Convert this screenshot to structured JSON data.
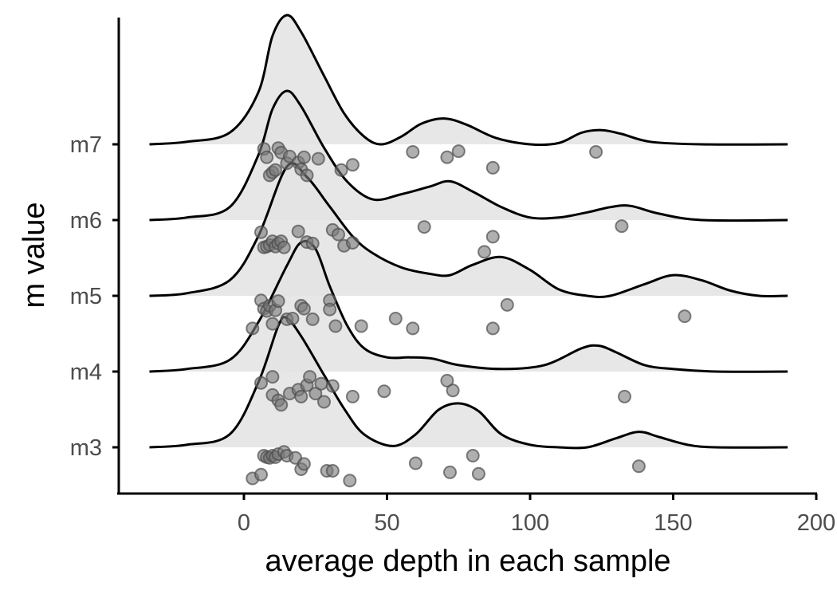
{
  "chart_data": {
    "type": "ridgeline",
    "title": "",
    "xlabel": "average depth in each sample",
    "ylabel": "m value",
    "xlim": [
      -45,
      200
    ],
    "x_ticks": [
      0,
      50,
      100,
      150,
      200
    ],
    "grid": false,
    "categories": [
      "m3",
      "m4",
      "m5",
      "m6",
      "m7"
    ],
    "series": [
      {
        "name": "m3",
        "density": [
          [
            -33,
            0
          ],
          [
            -20,
            0.02
          ],
          [
            -5,
            0.1
          ],
          [
            5,
            0.5
          ],
          [
            12,
            0.94
          ],
          [
            15,
            1.0
          ],
          [
            20,
            0.86
          ],
          [
            28,
            0.56
          ],
          [
            35,
            0.3
          ],
          [
            42,
            0.1
          ],
          [
            52,
            0.01
          ],
          [
            60,
            0.1
          ],
          [
            68,
            0.29
          ],
          [
            75,
            0.34
          ],
          [
            82,
            0.28
          ],
          [
            90,
            0.1
          ],
          [
            100,
            0.02
          ],
          [
            110,
            0.0
          ],
          [
            120,
            0.0
          ],
          [
            130,
            0.07
          ],
          [
            138,
            0.12
          ],
          [
            145,
            0.08
          ],
          [
            155,
            0.02
          ],
          [
            165,
            0.0
          ],
          [
            190,
            0.0
          ]
        ],
        "points": [
          [
            3,
            -0.41
          ],
          [
            6,
            -0.36
          ],
          [
            7,
            -0.11
          ],
          [
            8,
            -0.13
          ],
          [
            9,
            -0.14
          ],
          [
            10,
            -0.11
          ],
          [
            11,
            -0.13
          ],
          [
            12,
            -0.09
          ],
          [
            14,
            -0.06
          ],
          [
            15,
            -0.11
          ],
          [
            18,
            -0.14
          ],
          [
            20,
            -0.29
          ],
          [
            21,
            -0.22
          ],
          [
            29,
            -0.31
          ],
          [
            31,
            -0.31
          ],
          [
            37,
            -0.44
          ],
          [
            60,
            -0.21
          ],
          [
            72,
            -0.33
          ],
          [
            80,
            -0.11
          ],
          [
            82,
            -0.35
          ],
          [
            138,
            -0.25
          ]
        ]
      },
      {
        "name": "m4",
        "density": [
          [
            -33,
            0
          ],
          [
            -20,
            0.02
          ],
          [
            -5,
            0.09
          ],
          [
            5,
            0.38
          ],
          [
            15,
            0.82
          ],
          [
            20,
            1.0
          ],
          [
            25,
            0.95
          ],
          [
            30,
            0.66
          ],
          [
            36,
            0.36
          ],
          [
            42,
            0.18
          ],
          [
            50,
            0.11
          ],
          [
            58,
            0.11
          ],
          [
            66,
            0.1
          ],
          [
            75,
            0.05
          ],
          [
            90,
            0.02
          ],
          [
            105,
            0.05
          ],
          [
            118,
            0.18
          ],
          [
            124,
            0.2
          ],
          [
            130,
            0.15
          ],
          [
            140,
            0.05
          ],
          [
            150,
            0.02
          ],
          [
            165,
            0.0
          ],
          [
            190,
            0.0
          ]
        ],
        "points": [
          [
            6,
            -0.15
          ],
          [
            10,
            -0.07
          ],
          [
            10,
            -0.31
          ],
          [
            12,
            -0.38
          ],
          [
            13,
            -0.44
          ],
          [
            16,
            -0.29
          ],
          [
            19,
            -0.24
          ],
          [
            20,
            -0.33
          ],
          [
            22,
            -0.18
          ],
          [
            23,
            -0.07
          ],
          [
            25,
            -0.29
          ],
          [
            27,
            -0.16
          ],
          [
            28,
            -0.4
          ],
          [
            31,
            -0.19
          ],
          [
            38,
            -0.33
          ],
          [
            49,
            -0.26
          ],
          [
            71,
            -0.12
          ],
          [
            73,
            -0.25
          ],
          [
            133,
            -0.33
          ]
        ]
      },
      {
        "name": "m5",
        "density": [
          [
            -33,
            0
          ],
          [
            -20,
            0.02
          ],
          [
            -5,
            0.12
          ],
          [
            5,
            0.46
          ],
          [
            15,
            1.0
          ],
          [
            22,
            0.92
          ],
          [
            30,
            0.69
          ],
          [
            38,
            0.46
          ],
          [
            45,
            0.33
          ],
          [
            55,
            0.22
          ],
          [
            65,
            0.17
          ],
          [
            72,
            0.16
          ],
          [
            80,
            0.24
          ],
          [
            90,
            0.3
          ],
          [
            100,
            0.2
          ],
          [
            110,
            0.05
          ],
          [
            120,
            0.0
          ],
          [
            128,
            0.0
          ],
          [
            140,
            0.09
          ],
          [
            150,
            0.16
          ],
          [
            160,
            0.12
          ],
          [
            170,
            0.04
          ],
          [
            180,
            0.0
          ],
          [
            190,
            0.0
          ]
        ],
        "points": [
          [
            3,
            -0.43
          ],
          [
            6,
            -0.06
          ],
          [
            7,
            -0.17
          ],
          [
            8,
            -0.2
          ],
          [
            9,
            -0.13
          ],
          [
            10,
            -0.37
          ],
          [
            11,
            -0.19
          ],
          [
            12,
            -0.07
          ],
          [
            15,
            -0.31
          ],
          [
            17,
            -0.3
          ],
          [
            20,
            -0.13
          ],
          [
            21,
            -0.17
          ],
          [
            24,
            -0.31
          ],
          [
            30,
            -0.06
          ],
          [
            30,
            -0.18
          ],
          [
            32,
            -0.4
          ],
          [
            41,
            -0.4
          ],
          [
            53,
            -0.3
          ],
          [
            59,
            -0.43
          ],
          [
            87,
            -0.43
          ],
          [
            92,
            -0.12
          ],
          [
            154,
            -0.27
          ]
        ]
      },
      {
        "name": "m6",
        "density": [
          [
            -33,
            0
          ],
          [
            -20,
            0.02
          ],
          [
            -5,
            0.1
          ],
          [
            5,
            0.5
          ],
          [
            10,
            0.86
          ],
          [
            15,
            1.0
          ],
          [
            20,
            0.88
          ],
          [
            28,
            0.56
          ],
          [
            36,
            0.3
          ],
          [
            45,
            0.16
          ],
          [
            55,
            0.2
          ],
          [
            65,
            0.26
          ],
          [
            72,
            0.3
          ],
          [
            80,
            0.22
          ],
          [
            90,
            0.1
          ],
          [
            100,
            0.02
          ],
          [
            110,
            0.02
          ],
          [
            120,
            0.06
          ],
          [
            128,
            0.1
          ],
          [
            135,
            0.11
          ],
          [
            145,
            0.05
          ],
          [
            160,
            0.0
          ],
          [
            190,
            0.0
          ]
        ],
        "points": [
          [
            6,
            -0.16
          ],
          [
            7,
            -0.36
          ],
          [
            8,
            -0.35
          ],
          [
            9,
            -0.33
          ],
          [
            10,
            -0.28
          ],
          [
            11,
            -0.35
          ],
          [
            12,
            -0.31
          ],
          [
            13,
            -0.28
          ],
          [
            14,
            -0.36
          ],
          [
            19,
            -0.15
          ],
          [
            22,
            -0.29
          ],
          [
            24,
            -0.31
          ],
          [
            31,
            -0.13
          ],
          [
            33,
            -0.19
          ],
          [
            35,
            -0.34
          ],
          [
            38,
            -0.3
          ],
          [
            63,
            -0.09
          ],
          [
            84,
            -0.42
          ],
          [
            87,
            -0.22
          ],
          [
            132,
            -0.08
          ]
        ]
      },
      {
        "name": "m7",
        "density": [
          [
            -33,
            0
          ],
          [
            -20,
            0.02
          ],
          [
            -5,
            0.09
          ],
          [
            5,
            0.4
          ],
          [
            10,
            0.84
          ],
          [
            15,
            1.0
          ],
          [
            20,
            0.87
          ],
          [
            28,
            0.53
          ],
          [
            35,
            0.24
          ],
          [
            42,
            0.06
          ],
          [
            48,
            0.0
          ],
          [
            55,
            0.06
          ],
          [
            62,
            0.16
          ],
          [
            70,
            0.2
          ],
          [
            78,
            0.15
          ],
          [
            88,
            0.05
          ],
          [
            100,
            0.0
          ],
          [
            110,
            0.01
          ],
          [
            118,
            0.09
          ],
          [
            125,
            0.11
          ],
          [
            132,
            0.08
          ],
          [
            142,
            0.02
          ],
          [
            160,
            0.0
          ],
          [
            190,
            0.0
          ]
        ],
        "points": [
          [
            7,
            -0.06
          ],
          [
            8,
            -0.17
          ],
          [
            9,
            -0.41
          ],
          [
            10,
            -0.37
          ],
          [
            11,
            -0.34
          ],
          [
            12,
            -0.05
          ],
          [
            13,
            -0.11
          ],
          [
            15,
            -0.25
          ],
          [
            16,
            -0.16
          ],
          [
            19,
            -0.24
          ],
          [
            20,
            -0.33
          ],
          [
            21,
            -0.17
          ],
          [
            22,
            -0.41
          ],
          [
            26,
            -0.19
          ],
          [
            34,
            -0.34
          ],
          [
            38,
            -0.27
          ],
          [
            59,
            -0.1
          ],
          [
            71,
            -0.17
          ],
          [
            75,
            -0.09
          ],
          [
            87,
            -0.31
          ],
          [
            123,
            -0.1
          ]
        ]
      }
    ],
    "fill_color": "#e3e3e3",
    "line_color": "#000000",
    "point_color": "#7a7a7a"
  }
}
